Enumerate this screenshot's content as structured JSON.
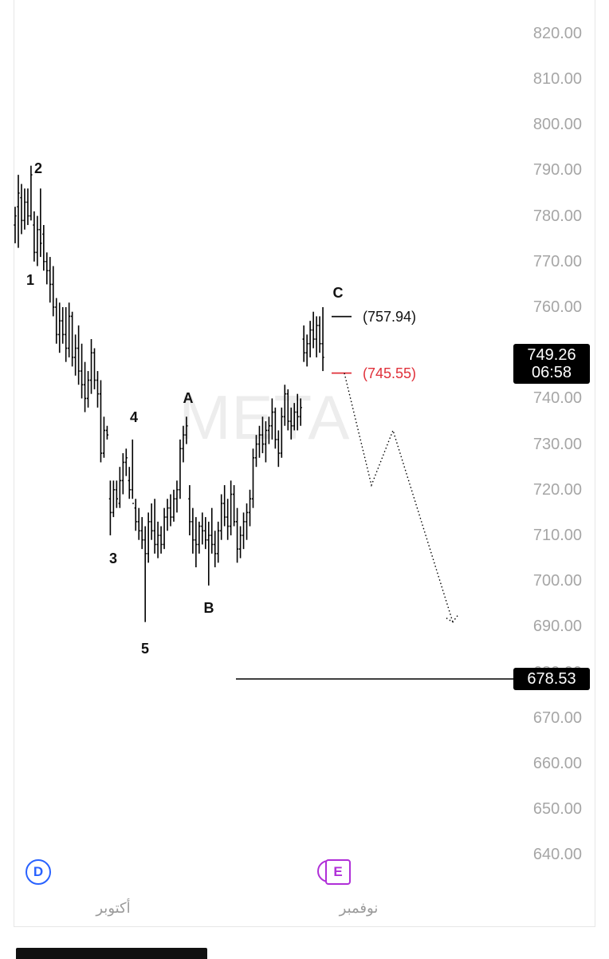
{
  "chart_data": {
    "type": "ohlc",
    "symbol_watermark": "META",
    "y_axis": {
      "ticks": [
        "820.00",
        "810.00",
        "800.00",
        "790.00",
        "780.00",
        "770.00",
        "760.00",
        "750.00",
        "740.00",
        "730.00",
        "720.00",
        "710.00",
        "700.00",
        "690.00",
        "680.00",
        "670.00",
        "660.00",
        "650.00",
        "640.00"
      ],
      "range": [
        635,
        825
      ]
    },
    "x_axis": {
      "months": [
        "أكتوبر",
        "نوفمبر"
      ]
    },
    "bars": [
      {
        "o": 778,
        "h": 782,
        "l": 774,
        "c": 780
      },
      {
        "o": 782,
        "h": 789,
        "l": 773,
        "c": 785
      },
      {
        "o": 784,
        "h": 787,
        "l": 776,
        "c": 779
      },
      {
        "o": 779,
        "h": 786,
        "l": 777,
        "c": 783
      },
      {
        "o": 783,
        "h": 786,
        "l": 778,
        "c": 780
      },
      {
        "o": 780,
        "h": 791,
        "l": 779,
        "c": 789
      },
      {
        "o": 778,
        "h": 781,
        "l": 770,
        "c": 772
      },
      {
        "o": 772,
        "h": 780,
        "l": 769,
        "c": 777
      },
      {
        "o": 777,
        "h": 786,
        "l": 771,
        "c": 774
      },
      {
        "o": 776,
        "h": 778,
        "l": 768,
        "c": 770
      },
      {
        "o": 770,
        "h": 772,
        "l": 765,
        "c": 768
      },
      {
        "o": 768,
        "h": 771,
        "l": 761,
        "c": 765
      },
      {
        "o": 765,
        "h": 769,
        "l": 758,
        "c": 760
      },
      {
        "o": 760,
        "h": 762,
        "l": 752,
        "c": 754
      },
      {
        "o": 754,
        "h": 761,
        "l": 750,
        "c": 757
      },
      {
        "o": 757,
        "h": 760,
        "l": 752,
        "c": 754
      },
      {
        "o": 754,
        "h": 760,
        "l": 748,
        "c": 751
      },
      {
        "o": 751,
        "h": 761,
        "l": 749,
        "c": 758
      },
      {
        "o": 758,
        "h": 759,
        "l": 747,
        "c": 749
      },
      {
        "o": 749,
        "h": 754,
        "l": 745,
        "c": 751
      },
      {
        "o": 751,
        "h": 756,
        "l": 743,
        "c": 746
      },
      {
        "o": 746,
        "h": 752,
        "l": 740,
        "c": 743
      },
      {
        "o": 743,
        "h": 748,
        "l": 737,
        "c": 740
      },
      {
        "o": 740,
        "h": 746,
        "l": 738,
        "c": 744
      },
      {
        "o": 744,
        "h": 753,
        "l": 741,
        "c": 750
      },
      {
        "o": 750,
        "h": 751,
        "l": 742,
        "c": 744
      },
      {
        "o": 744,
        "h": 746,
        "l": 738,
        "c": 741
      },
      {
        "o": 741,
        "h": 744,
        "l": 726,
        "c": 728
      },
      {
        "o": 728,
        "h": 736,
        "l": 727,
        "c": 733
      },
      {
        "o": 733,
        "h": 734,
        "l": 731,
        "c": 732
      },
      {
        "o": 718,
        "h": 722,
        "l": 710,
        "c": 715
      },
      {
        "o": 715,
        "h": 722,
        "l": 714,
        "c": 720
      },
      {
        "o": 720,
        "h": 722,
        "l": 716,
        "c": 718
      },
      {
        "o": 717,
        "h": 725,
        "l": 716,
        "c": 722
      },
      {
        "o": 722,
        "h": 728,
        "l": 719,
        "c": 726
      },
      {
        "o": 726,
        "h": 729,
        "l": 723,
        "c": 727
      },
      {
        "o": 722,
        "h": 725,
        "l": 718,
        "c": 720
      },
      {
        "o": 720,
        "h": 731,
        "l": 718,
        "c": 717
      },
      {
        "o": 716,
        "h": 718,
        "l": 711,
        "c": 713
      },
      {
        "o": 713,
        "h": 716,
        "l": 709,
        "c": 711
      },
      {
        "o": 711,
        "h": 714,
        "l": 707,
        "c": 709
      },
      {
        "o": 709,
        "h": 712,
        "l": 691,
        "c": 706
      },
      {
        "o": 706,
        "h": 715,
        "l": 704,
        "c": 713
      },
      {
        "o": 713,
        "h": 717,
        "l": 709,
        "c": 711
      },
      {
        "o": 711,
        "h": 718,
        "l": 706,
        "c": 708
      },
      {
        "o": 708,
        "h": 713,
        "l": 705,
        "c": 710
      },
      {
        "o": 710,
        "h": 712,
        "l": 706,
        "c": 708
      },
      {
        "o": 708,
        "h": 716,
        "l": 707,
        "c": 714
      },
      {
        "o": 714,
        "h": 718,
        "l": 711,
        "c": 716
      },
      {
        "o": 716,
        "h": 719,
        "l": 712,
        "c": 714
      },
      {
        "o": 714,
        "h": 720,
        "l": 713,
        "c": 718
      },
      {
        "o": 718,
        "h": 722,
        "l": 715,
        "c": 720
      },
      {
        "o": 720,
        "h": 731,
        "l": 718,
        "c": 729
      },
      {
        "o": 729,
        "h": 734,
        "l": 726,
        "c": 732
      },
      {
        "o": 732,
        "h": 736,
        "l": 730,
        "c": 734
      },
      {
        "o": 718,
        "h": 721,
        "l": 710,
        "c": 713
      },
      {
        "o": 713,
        "h": 716,
        "l": 706,
        "c": 709
      },
      {
        "o": 709,
        "h": 714,
        "l": 703,
        "c": 708
      },
      {
        "o": 708,
        "h": 713,
        "l": 706,
        "c": 712
      },
      {
        "o": 712,
        "h": 715,
        "l": 708,
        "c": 711
      },
      {
        "o": 711,
        "h": 714,
        "l": 707,
        "c": 709
      },
      {
        "o": 709,
        "h": 713,
        "l": 699,
        "c": 710
      },
      {
        "o": 710,
        "h": 716,
        "l": 706,
        "c": 708
      },
      {
        "o": 708,
        "h": 711,
        "l": 703,
        "c": 706
      },
      {
        "o": 706,
        "h": 713,
        "l": 704,
        "c": 711
      },
      {
        "o": 711,
        "h": 719,
        "l": 709,
        "c": 717
      },
      {
        "o": 717,
        "h": 721,
        "l": 712,
        "c": 714
      },
      {
        "o": 714,
        "h": 718,
        "l": 709,
        "c": 712
      },
      {
        "o": 712,
        "h": 722,
        "l": 710,
        "c": 719
      },
      {
        "o": 719,
        "h": 721,
        "l": 712,
        "c": 713
      },
      {
        "o": 713,
        "h": 716,
        "l": 704,
        "c": 707
      },
      {
        "o": 707,
        "h": 712,
        "l": 705,
        "c": 710
      },
      {
        "o": 710,
        "h": 715,
        "l": 707,
        "c": 713
      },
      {
        "o": 713,
        "h": 717,
        "l": 709,
        "c": 715
      },
      {
        "o": 715,
        "h": 720,
        "l": 712,
        "c": 718
      },
      {
        "o": 718,
        "h": 729,
        "l": 716,
        "c": 727
      },
      {
        "o": 727,
        "h": 732,
        "l": 725,
        "c": 730
      },
      {
        "o": 730,
        "h": 734,
        "l": 727,
        "c": 732
      },
      {
        "o": 732,
        "h": 736,
        "l": 728,
        "c": 730
      },
      {
        "o": 730,
        "h": 735,
        "l": 726,
        "c": 733
      },
      {
        "o": 733,
        "h": 736,
        "l": 730,
        "c": 734
      },
      {
        "o": 734,
        "h": 740,
        "l": 731,
        "c": 737
      },
      {
        "o": 737,
        "h": 738,
        "l": 729,
        "c": 731
      },
      {
        "o": 731,
        "h": 733,
        "l": 725,
        "c": 728
      },
      {
        "o": 728,
        "h": 738,
        "l": 727,
        "c": 736
      },
      {
        "o": 736,
        "h": 743,
        "l": 734,
        "c": 741
      },
      {
        "o": 741,
        "h": 742,
        "l": 733,
        "c": 735
      },
      {
        "o": 735,
        "h": 738,
        "l": 731,
        "c": 734
      },
      {
        "o": 734,
        "h": 739,
        "l": 733,
        "c": 737
      },
      {
        "o": 737,
        "h": 741,
        "l": 733,
        "c": 736
      },
      {
        "o": 736,
        "h": 740,
        "l": 734,
        "c": 738
      },
      {
        "o": 753,
        "h": 756,
        "l": 748,
        "c": 750
      },
      {
        "o": 750,
        "h": 754,
        "l": 747,
        "c": 752
      },
      {
        "o": 752,
        "h": 757,
        "l": 749,
        "c": 755
      },
      {
        "o": 755,
        "h": 759,
        "l": 751,
        "c": 753
      },
      {
        "o": 753,
        "h": 758,
        "l": 749,
        "c": 756
      },
      {
        "o": 756,
        "h": 758,
        "l": 750,
        "c": 752
      },
      {
        "o": 752,
        "h": 760,
        "l": 746,
        "c": 749
      }
    ],
    "wave_labels": [
      "2",
      "1",
      "4",
      "3",
      "5",
      "A",
      "B",
      "C"
    ],
    "levels": [
      {
        "label": "(757.94)",
        "price": 757.94,
        "color": "#111111"
      },
      {
        "label": "(745.55)",
        "price": 745.55,
        "color": "#e0303a"
      }
    ],
    "horizontal_line": {
      "price": 678.53
    },
    "last_price": {
      "price": "749.26",
      "countdown": "06:58"
    },
    "line_price": "678.53",
    "projection": [
      {
        "t": 0,
        "price": 745.55
      },
      {
        "t": 1,
        "price": 721
      },
      {
        "t": 2,
        "price": 733
      },
      {
        "t": 3,
        "price": 691
      }
    ],
    "events": {
      "dividend": "D",
      "earnings": "E"
    }
  }
}
